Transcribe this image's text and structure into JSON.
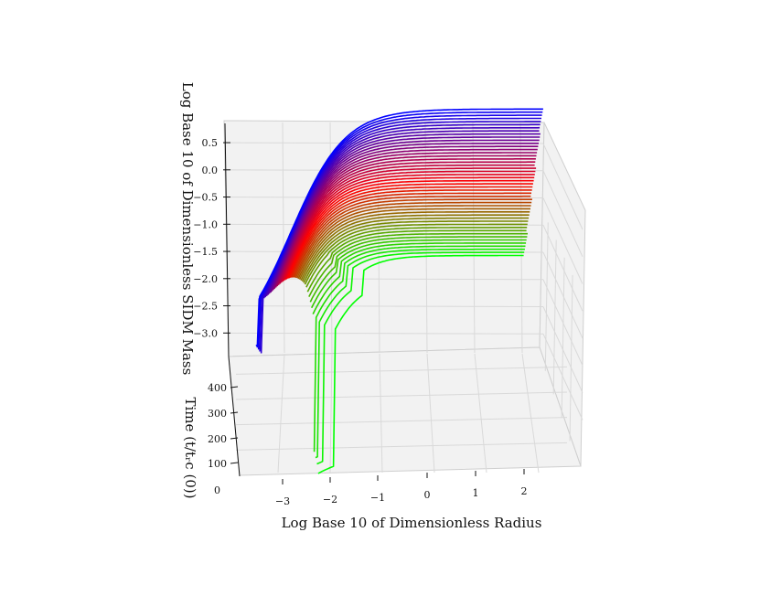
{
  "chart_data": {
    "type": "line",
    "projection": "3d",
    "title": "",
    "xlabel": "Log Base 10 of Dimensionless Radius",
    "ylabel": "Time (t/t_rc (0))",
    "ylabel_display": "Time (t/tᵣc (0))",
    "zlabel": "Log Base 10 of Dimensionless SIDM Mass",
    "x_ticks": [
      "−3",
      "−2",
      "−1",
      "0",
      "1",
      "2"
    ],
    "y_ticks": [
      "0",
      "100",
      "200",
      "300",
      "400"
    ],
    "z_ticks": [
      "−3.0",
      "−2.5",
      "−2.0",
      "−1.5",
      "−1.0",
      "−0.5",
      "0.0",
      "0.5"
    ],
    "xlim": [
      -3.5,
      2.8
    ],
    "ylim": [
      0,
      470
    ],
    "zlim": [
      -3.6,
      0.7
    ],
    "grid": true,
    "color_map": {
      "start": "#00ff00",
      "mid": "#ff0000",
      "end": "#0000ff",
      "direction": "time increases: green to red to blue"
    },
    "n_curves": 48,
    "time_range": [
      0,
      450
    ],
    "profile_model": {
      "description": "Each curve is log10 SIDM mass vs log10 radius at one time; flat floor at small radius, rising core, then outer plateau.",
      "core_radius_start": -1.35,
      "core_radius_end": -3.35,
      "floor_value": -3.6,
      "outer_plateau_start": 0.45,
      "outer_plateau_end": 0.95,
      "inner_shelf_late": -1.7
    }
  }
}
